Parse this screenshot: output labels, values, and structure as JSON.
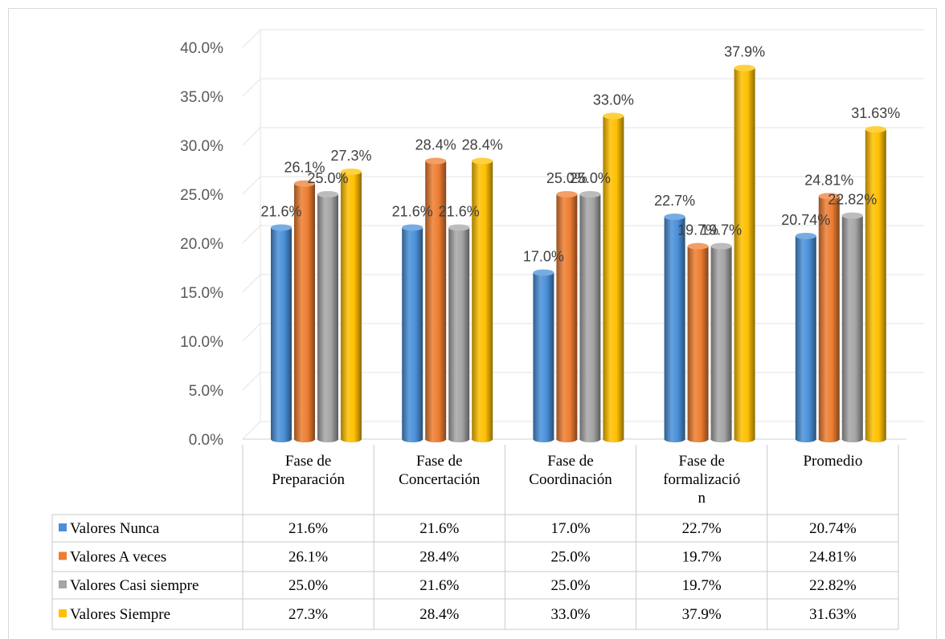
{
  "chart_data": {
    "type": "bar",
    "categories": [
      [
        "Fase de",
        "Preparación"
      ],
      [
        "Fase de",
        "Concertación"
      ],
      [
        "Fase de",
        "Coordinación"
      ],
      [
        "Fase de",
        "formalizació",
        "n"
      ],
      [
        "Promedio"
      ]
    ],
    "series": [
      {
        "name": "Valores Nunca",
        "color": "#4a90d9",
        "values": [
          21.6,
          21.6,
          17.0,
          22.7,
          20.74
        ],
        "labels": [
          "21.6%",
          "21.6%",
          "17.0%",
          "22.7%",
          "20.74%"
        ]
      },
      {
        "name": "Valores A veces",
        "color": "#ed7d31",
        "values": [
          26.1,
          28.4,
          25.0,
          19.7,
          24.81
        ],
        "labels": [
          "26.1%",
          "28.4%",
          "25.0%",
          "19.7%",
          "24.81%"
        ]
      },
      {
        "name": "Valores Casi siempre",
        "color": "#a5a5a5",
        "values": [
          25.0,
          21.6,
          25.0,
          19.7,
          22.82
        ],
        "labels": [
          "25.0%",
          "21.6%",
          "25.0%",
          "19.7%",
          "22.82%"
        ]
      },
      {
        "name": "Valores Siempre",
        "color": "#ffc000",
        "values": [
          27.3,
          28.4,
          33.0,
          37.9,
          31.63
        ],
        "labels": [
          "27.3%",
          "28.4%",
          "33.0%",
          "37.9%",
          "31.63%"
        ]
      }
    ],
    "y_ticks": [
      "0.0%",
      "5.0%",
      "10.0%",
      "15.0%",
      "20.0%",
      "25.0%",
      "30.0%",
      "35.0%",
      "40.0%"
    ],
    "ylim": [
      0,
      40
    ],
    "grid": true,
    "legend": "data-table"
  }
}
